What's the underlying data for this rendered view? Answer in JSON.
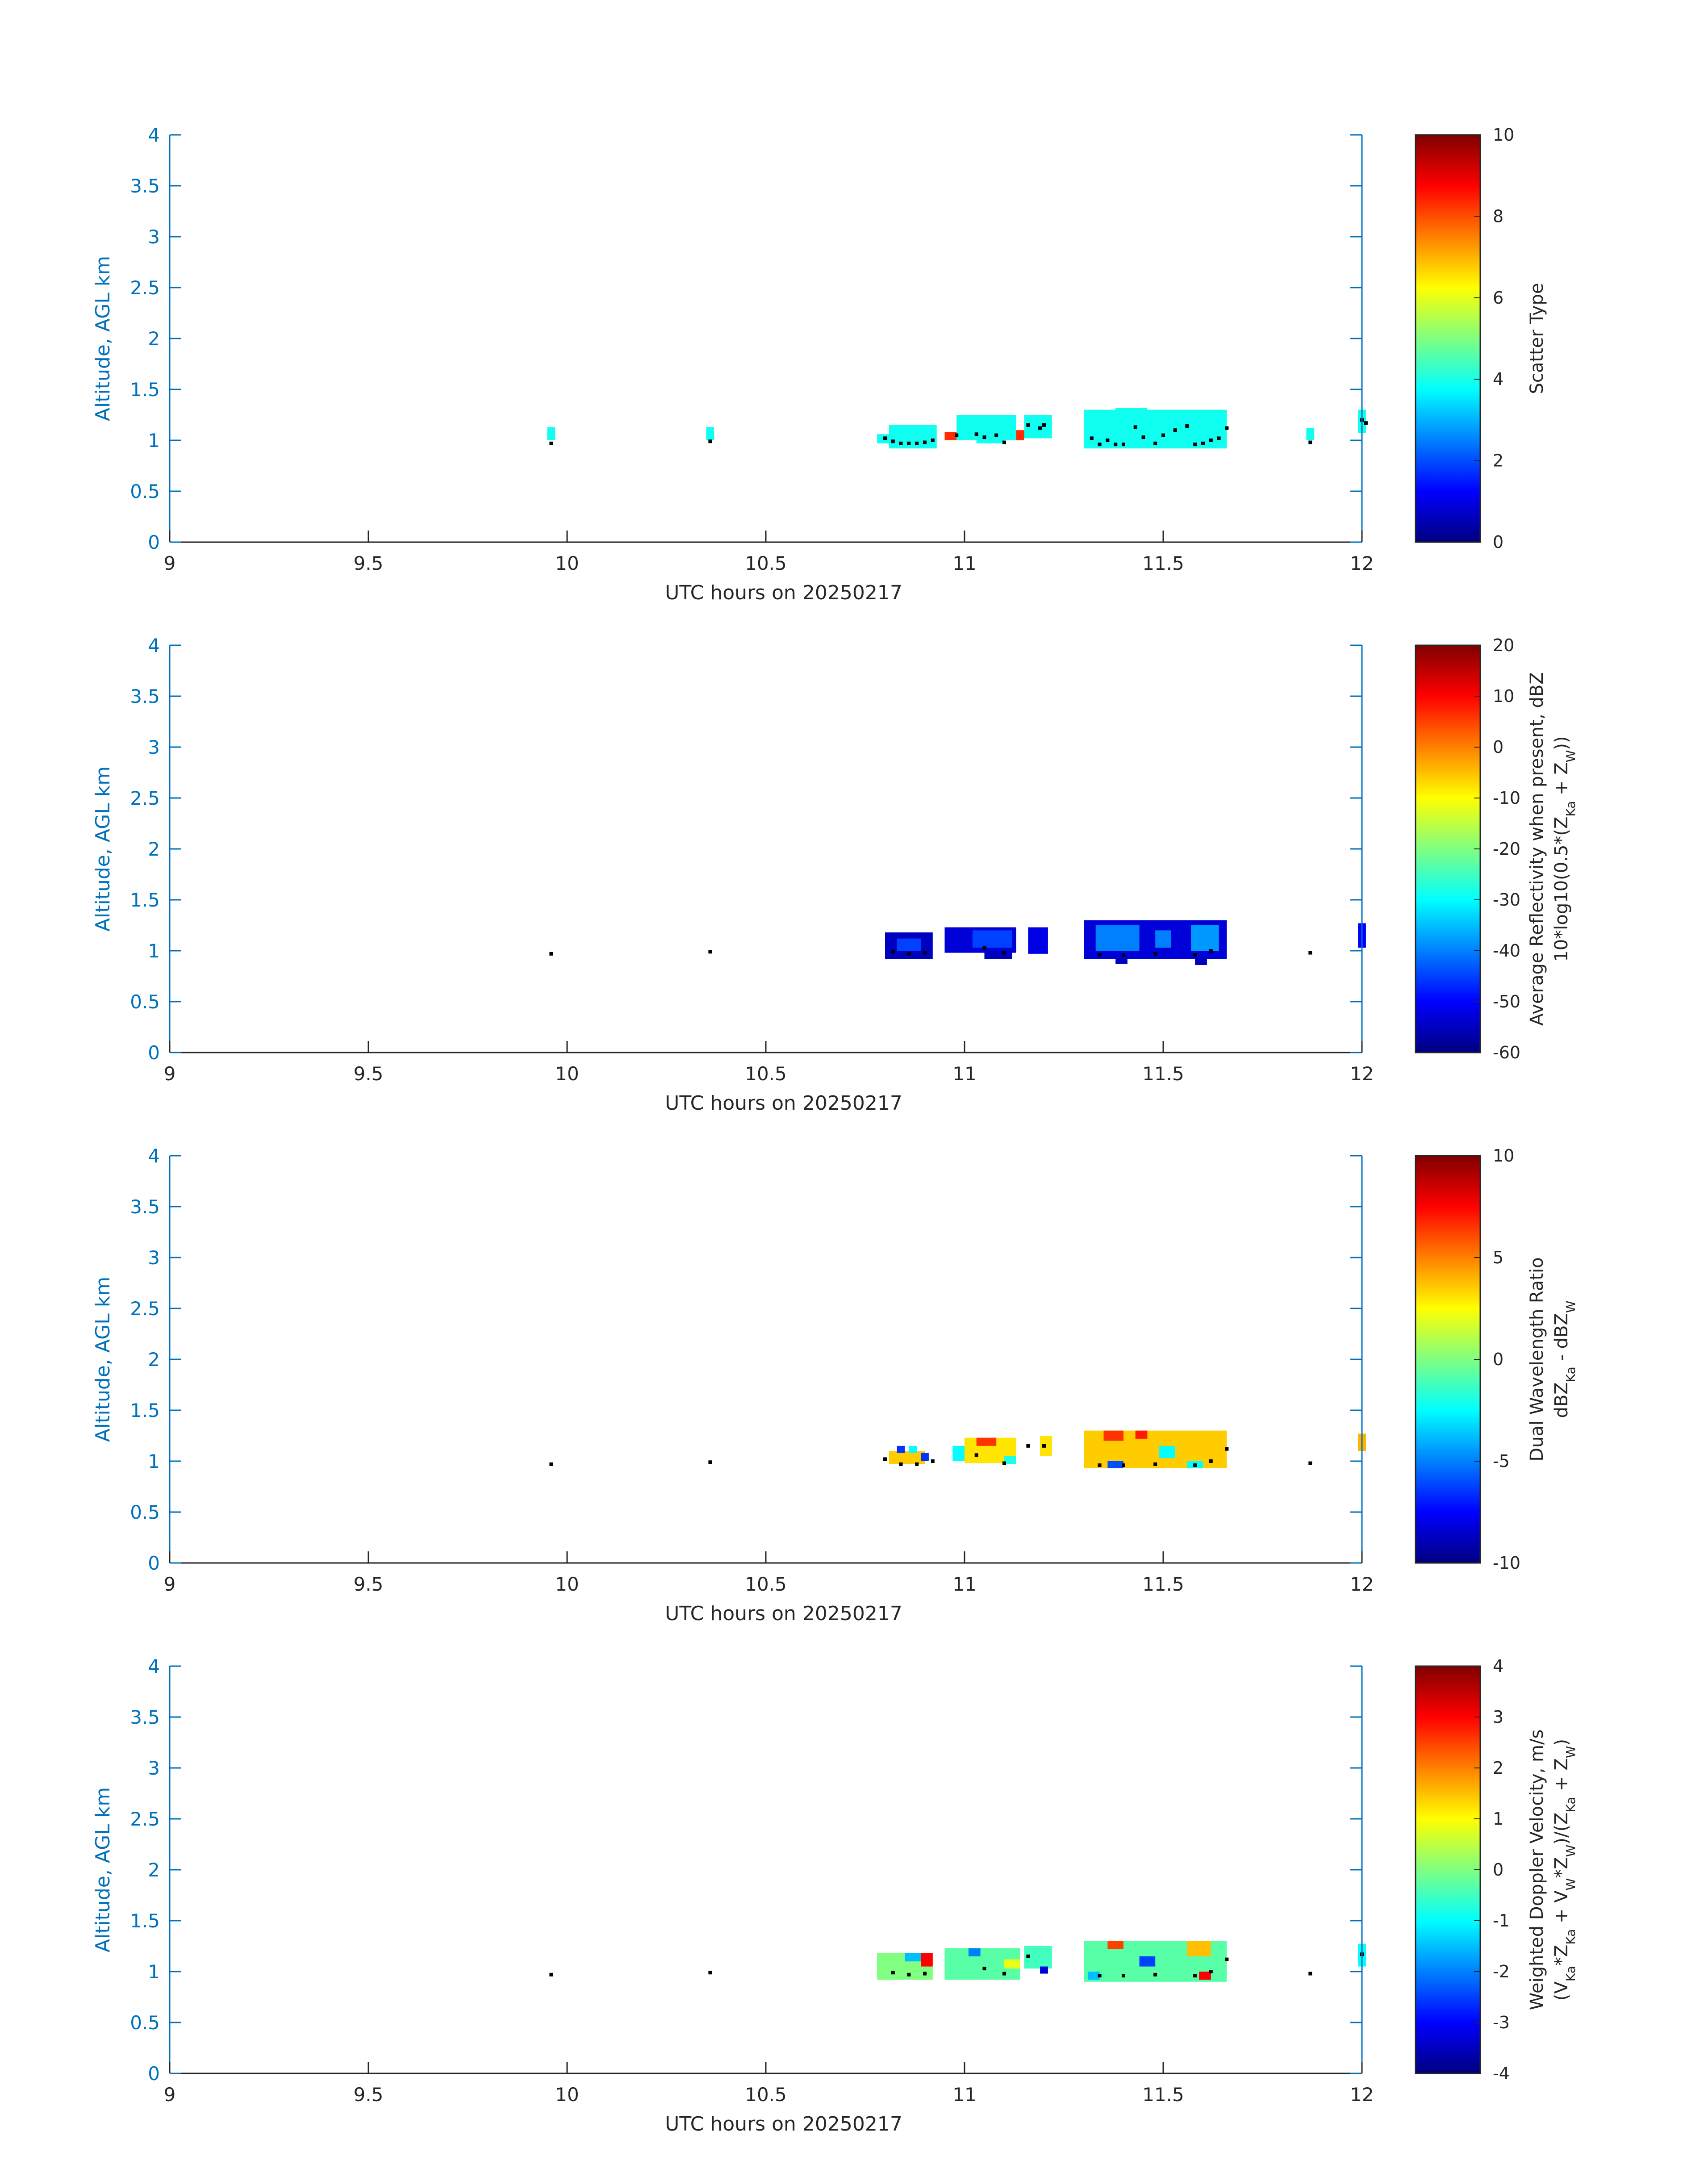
{
  "figure": {
    "date": "20250217",
    "xlabel": "UTC hours on 20250217",
    "ylabel": "Altitude, AGL km",
    "xticks": [
      "9",
      "9.5",
      "10",
      "10.5",
      "11",
      "11.5",
      "12"
    ],
    "yticks": [
      "0",
      "0.5",
      "1",
      "1.5",
      "2",
      "2.5",
      "3",
      "3.5",
      "4"
    ]
  },
  "chart_data": [
    {
      "type": "heatmap",
      "xlabel": "UTC hours on 20250217",
      "ylabel": "Altitude, AGL km",
      "xlim": [
        9,
        12
      ],
      "ylim": [
        0,
        4
      ],
      "colormap": "jet",
      "colorbar": {
        "label_line1": "Scatter Type",
        "label_line2": "",
        "range": [
          0,
          10
        ],
        "ticks": [
          "0",
          "2",
          "4",
          "6",
          "8",
          "10"
        ]
      },
      "blocks": [
        {
          "x0": 9.95,
          "x1": 9.97,
          "y0": 1.0,
          "y1": 1.13,
          "value": 3.9
        },
        {
          "x0": 10.35,
          "x1": 10.37,
          "y0": 1.0,
          "y1": 1.13,
          "value": 3.9
        },
        {
          "x0": 10.78,
          "x1": 10.82,
          "y0": 0.97,
          "y1": 1.06,
          "value": 3.9
        },
        {
          "x0": 10.81,
          "x1": 10.93,
          "y0": 0.92,
          "y1": 1.15,
          "value": 3.9
        },
        {
          "x0": 10.95,
          "x1": 10.98,
          "y0": 1.0,
          "y1": 1.08,
          "value": 8.3
        },
        {
          "x0": 10.98,
          "x1": 11.13,
          "y0": 1.0,
          "y1": 1.25,
          "value": 3.9
        },
        {
          "x0": 11.03,
          "x1": 11.1,
          "y0": 0.97,
          "y1": 1.05,
          "value": 3.9
        },
        {
          "x0": 11.13,
          "x1": 11.15,
          "y0": 1.0,
          "y1": 1.1,
          "value": 8.3
        },
        {
          "x0": 11.15,
          "x1": 11.22,
          "y0": 1.02,
          "y1": 1.25,
          "value": 3.9
        },
        {
          "x0": 11.3,
          "x1": 11.66,
          "y0": 0.92,
          "y1": 1.3,
          "value": 3.9
        },
        {
          "x0": 11.38,
          "x1": 11.46,
          "y0": 1.25,
          "y1": 1.32,
          "value": 3.9
        },
        {
          "x0": 11.86,
          "x1": 11.88,
          "y0": 1.0,
          "y1": 1.12,
          "value": 3.9
        },
        {
          "x0": 11.99,
          "x1": 12.01,
          "y0": 1.07,
          "y1": 1.3,
          "value": 3.9
        }
      ],
      "cloud_base_points": [
        [
          9.96,
          0.97
        ],
        [
          10.36,
          0.99
        ],
        [
          10.8,
          1.02
        ],
        [
          10.82,
          0.99
        ],
        [
          10.84,
          0.97
        ],
        [
          10.86,
          0.97
        ],
        [
          10.88,
          0.97
        ],
        [
          10.9,
          0.98
        ],
        [
          10.92,
          1.0
        ],
        [
          10.98,
          1.05
        ],
        [
          11.03,
          1.06
        ],
        [
          11.05,
          1.03
        ],
        [
          11.08,
          1.05
        ],
        [
          11.1,
          0.98
        ],
        [
          11.16,
          1.15
        ],
        [
          11.19,
          1.12
        ],
        [
          11.2,
          1.15
        ],
        [
          11.32,
          1.02
        ],
        [
          11.34,
          0.96
        ],
        [
          11.36,
          1.0
        ],
        [
          11.38,
          0.96
        ],
        [
          11.4,
          0.96
        ],
        [
          11.43,
          1.13
        ],
        [
          11.45,
          1.03
        ],
        [
          11.48,
          0.97
        ],
        [
          11.5,
          1.05
        ],
        [
          11.53,
          1.1
        ],
        [
          11.56,
          1.14
        ],
        [
          11.58,
          0.96
        ],
        [
          11.6,
          0.97
        ],
        [
          11.62,
          1.0
        ],
        [
          11.64,
          1.02
        ],
        [
          11.66,
          1.12
        ],
        [
          11.87,
          0.98
        ],
        [
          12.0,
          1.2
        ],
        [
          12.01,
          1.17
        ]
      ]
    },
    {
      "type": "heatmap",
      "xlabel": "UTC hours on 20250217",
      "ylabel": "Altitude, AGL km",
      "xlim": [
        9,
        12
      ],
      "ylim": [
        0,
        4
      ],
      "colormap": "jet",
      "colorbar": {
        "label_line1": "Average Reflectivity when present, dBZ",
        "label_line2": "10*log10(0.5*(Z_Ka + Z_W))",
        "range": [
          -60,
          20
        ],
        "ticks": [
          "-60",
          "-50",
          "-40",
          "-30",
          "-20",
          "-10",
          "0",
          "10",
          "20"
        ]
      },
      "blocks": [
        {
          "x0": 10.8,
          "x1": 10.92,
          "y0": 0.92,
          "y1": 1.18,
          "value": -55
        },
        {
          "x0": 10.83,
          "x1": 10.89,
          "y0": 1.0,
          "y1": 1.12,
          "value": -45
        },
        {
          "x0": 10.95,
          "x1": 11.13,
          "y0": 0.98,
          "y1": 1.23,
          "value": -53
        },
        {
          "x0": 11.02,
          "x1": 11.12,
          "y0": 1.03,
          "y1": 1.2,
          "value": -45
        },
        {
          "x0": 11.05,
          "x1": 11.12,
          "y0": 0.92,
          "y1": 1.0,
          "value": -55
        },
        {
          "x0": 11.16,
          "x1": 11.21,
          "y0": 0.97,
          "y1": 1.23,
          "value": -52
        },
        {
          "x0": 11.3,
          "x1": 11.66,
          "y0": 0.92,
          "y1": 1.3,
          "value": -53
        },
        {
          "x0": 11.33,
          "x1": 11.44,
          "y0": 1.0,
          "y1": 1.25,
          "value": -40
        },
        {
          "x0": 11.48,
          "x1": 11.52,
          "y0": 1.03,
          "y1": 1.2,
          "value": -40
        },
        {
          "x0": 11.57,
          "x1": 11.64,
          "y0": 1.0,
          "y1": 1.25,
          "value": -38
        },
        {
          "x0": 11.38,
          "x1": 11.41,
          "y0": 0.87,
          "y1": 0.95,
          "value": -55
        },
        {
          "x0": 11.58,
          "x1": 11.61,
          "y0": 0.86,
          "y1": 0.94,
          "value": -55
        },
        {
          "x0": 11.99,
          "x1": 12.01,
          "y0": 1.03,
          "y1": 1.27,
          "value": -50
        }
      ],
      "cloud_base_points": [
        [
          9.96,
          0.97
        ],
        [
          10.36,
          0.99
        ],
        [
          10.82,
          0.99
        ],
        [
          10.86,
          0.97
        ],
        [
          10.9,
          0.98
        ],
        [
          11.05,
          1.03
        ],
        [
          11.1,
          0.98
        ],
        [
          11.34,
          0.96
        ],
        [
          11.4,
          0.96
        ],
        [
          11.48,
          0.97
        ],
        [
          11.58,
          0.96
        ],
        [
          11.62,
          1.0
        ],
        [
          11.87,
          0.98
        ]
      ]
    },
    {
      "type": "heatmap",
      "xlabel": "UTC hours on 20250217",
      "ylabel": "Altitude, AGL km",
      "xlim": [
        9,
        12
      ],
      "ylim": [
        0,
        4
      ],
      "colormap": "jet",
      "colorbar": {
        "label_line1": "Dual Wavelength Ratio",
        "label_line2": "dBZ_Ka - dBZ_W",
        "range": [
          -10,
          10
        ],
        "ticks": [
          "-10",
          "-5",
          "0",
          "5",
          "10"
        ]
      },
      "blocks": [
        {
          "x0": 10.81,
          "x1": 10.9,
          "y0": 0.97,
          "y1": 1.1,
          "value": 3.5
        },
        {
          "x0": 10.83,
          "x1": 10.85,
          "y0": 1.08,
          "y1": 1.15,
          "value": -6.5
        },
        {
          "x0": 10.86,
          "x1": 10.88,
          "y0": 1.08,
          "y1": 1.15,
          "value": -2.5
        },
        {
          "x0": 10.89,
          "x1": 10.91,
          "y0": 1.0,
          "y1": 1.08,
          "value": -6.5
        },
        {
          "x0": 10.97,
          "x1": 11.0,
          "y0": 1.0,
          "y1": 1.15,
          "value": -2.5
        },
        {
          "x0": 11.0,
          "x1": 11.13,
          "y0": 0.98,
          "y1": 1.23,
          "value": 3.0
        },
        {
          "x0": 11.03,
          "x1": 11.08,
          "y0": 1.15,
          "y1": 1.23,
          "value": 6.5
        },
        {
          "x0": 11.1,
          "x1": 11.13,
          "y0": 0.97,
          "y1": 1.05,
          "value": -2.0
        },
        {
          "x0": 11.19,
          "x1": 11.22,
          "y0": 1.05,
          "y1": 1.25,
          "value": 3.0
        },
        {
          "x0": 11.3,
          "x1": 11.66,
          "y0": 0.93,
          "y1": 1.3,
          "value": 3.5
        },
        {
          "x0": 11.35,
          "x1": 11.4,
          "y0": 1.2,
          "y1": 1.3,
          "value": 6.5
        },
        {
          "x0": 11.43,
          "x1": 11.46,
          "y0": 1.22,
          "y1": 1.3,
          "value": 7.0
        },
        {
          "x0": 11.49,
          "x1": 11.53,
          "y0": 1.03,
          "y1": 1.15,
          "value": -2.5
        },
        {
          "x0": 11.36,
          "x1": 11.4,
          "y0": 0.93,
          "y1": 1.0,
          "value": -6.0
        },
        {
          "x0": 11.56,
          "x1": 11.6,
          "y0": 0.93,
          "y1": 1.0,
          "value": -2.5
        },
        {
          "x0": 11.99,
          "x1": 12.01,
          "y0": 1.1,
          "y1": 1.27,
          "value": 4.0
        }
      ],
      "cloud_base_points": [
        [
          9.96,
          0.97
        ],
        [
          10.36,
          0.99
        ],
        [
          10.8,
          1.02
        ],
        [
          10.84,
          0.97
        ],
        [
          10.88,
          0.97
        ],
        [
          10.92,
          1.0
        ],
        [
          11.03,
          1.06
        ],
        [
          11.1,
          0.98
        ],
        [
          11.16,
          1.15
        ],
        [
          11.2,
          1.15
        ],
        [
          11.34,
          0.96
        ],
        [
          11.4,
          0.96
        ],
        [
          11.48,
          0.97
        ],
        [
          11.58,
          0.96
        ],
        [
          11.62,
          1.0
        ],
        [
          11.66,
          1.12
        ],
        [
          11.87,
          0.98
        ]
      ]
    },
    {
      "type": "heatmap",
      "xlabel": "UTC hours on 20250217",
      "ylabel": "Altitude, AGL km",
      "xlim": [
        9,
        12
      ],
      "ylim": [
        0,
        4
      ],
      "colormap": "jet",
      "colorbar": {
        "label_line1": "Weighted Doppler Velocity, m/s",
        "label_line2": "(V_Ka*Z_Ka + V_W*Z_W)/(Z_Ka + Z_W)",
        "range": [
          -4,
          4
        ],
        "ticks": [
          "-4",
          "-3",
          "-2",
          "-1",
          "0",
          "1",
          "2",
          "3",
          "4"
        ]
      },
      "blocks": [
        {
          "x0": 10.78,
          "x1": 10.92,
          "y0": 0.92,
          "y1": 1.18,
          "value": 0.0
        },
        {
          "x0": 10.85,
          "x1": 10.89,
          "y0": 1.1,
          "y1": 1.18,
          "value": -1.5
        },
        {
          "x0": 10.89,
          "x1": 10.92,
          "y0": 1.05,
          "y1": 1.18,
          "value": 3.0
        },
        {
          "x0": 10.95,
          "x1": 11.14,
          "y0": 0.92,
          "y1": 1.23,
          "value": -0.3
        },
        {
          "x0": 11.01,
          "x1": 11.04,
          "y0": 1.15,
          "y1": 1.23,
          "value": -2.0
        },
        {
          "x0": 11.1,
          "x1": 11.14,
          "y0": 1.03,
          "y1": 1.12,
          "value": 0.8
        },
        {
          "x0": 11.15,
          "x1": 11.22,
          "y0": 1.03,
          "y1": 1.25,
          "value": -0.5
        },
        {
          "x0": 11.19,
          "x1": 11.21,
          "y0": 0.98,
          "y1": 1.05,
          "value": -3.3
        },
        {
          "x0": 11.3,
          "x1": 11.66,
          "y0": 0.9,
          "y1": 1.3,
          "value": -0.3
        },
        {
          "x0": 11.36,
          "x1": 11.4,
          "y0": 1.22,
          "y1": 1.3,
          "value": 2.5
        },
        {
          "x0": 11.44,
          "x1": 11.48,
          "y0": 1.05,
          "y1": 1.15,
          "value": -2.5
        },
        {
          "x0": 11.56,
          "x1": 11.62,
          "y0": 1.15,
          "y1": 1.3,
          "value": 1.5
        },
        {
          "x0": 11.59,
          "x1": 11.62,
          "y0": 0.92,
          "y1": 1.0,
          "value": 3.0
        },
        {
          "x0": 11.31,
          "x1": 11.34,
          "y0": 0.92,
          "y1": 1.0,
          "value": -1.5
        },
        {
          "x0": 11.99,
          "x1": 12.01,
          "y0": 1.05,
          "y1": 1.27,
          "value": -1.0
        }
      ],
      "cloud_base_points": [
        [
          9.96,
          0.97
        ],
        [
          10.36,
          0.99
        ],
        [
          10.82,
          0.99
        ],
        [
          10.86,
          0.97
        ],
        [
          10.9,
          0.98
        ],
        [
          11.05,
          1.03
        ],
        [
          11.1,
          0.98
        ],
        [
          11.16,
          1.15
        ],
        [
          11.34,
          0.96
        ],
        [
          11.4,
          0.96
        ],
        [
          11.48,
          0.97
        ],
        [
          11.58,
          0.96
        ],
        [
          11.62,
          1.0
        ],
        [
          11.66,
          1.12
        ],
        [
          11.87,
          0.98
        ],
        [
          12.0,
          1.17
        ]
      ]
    }
  ]
}
